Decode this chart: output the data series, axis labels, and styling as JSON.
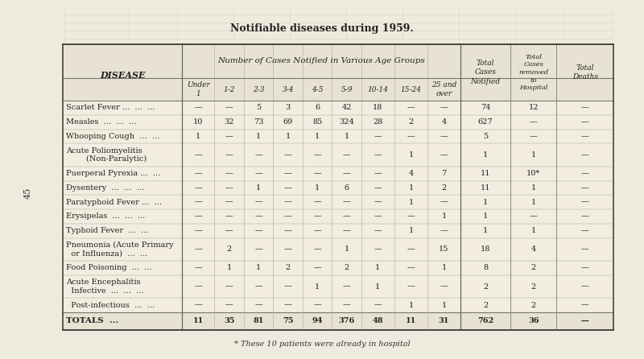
{
  "title": "Notifiable diseases during 1959.",
  "subtitle": "Number of Cases Notified in Various Age Groups",
  "footnote": "* These 10 patients were already in hospital",
  "page_number": "45",
  "bg_color": "#eeeade",
  "table_bg": "#f2ede0",
  "header_bg": "#e8e2d2",
  "rows": [
    {
      "name": [
        "Scarlet Fever ...  ...  ..."
      ],
      "data": [
        "—",
        "—",
        "5",
        "3",
        "6",
        "42",
        "18",
        "—",
        "—",
        "74",
        "12",
        "—"
      ]
    },
    {
      "name": [
        "Measles  ...  ...  ..."
      ],
      "data": [
        "10",
        "32",
        "73",
        "69",
        "85",
        "324",
        "28",
        "2",
        "4",
        "627",
        "—",
        "—"
      ]
    },
    {
      "name": [
        "Whooping Cough  ...  ..."
      ],
      "data": [
        "1",
        "—",
        "1",
        "1",
        "1",
        "1",
        "—",
        "—",
        "—",
        "5",
        "—",
        "—"
      ]
    },
    {
      "name": [
        "Acute Poliomyelitis",
        "        (Non-Paralytic)"
      ],
      "data": [
        "—",
        "—",
        "—",
        "—",
        "—",
        "—",
        "—",
        "1",
        "—",
        "1",
        "1",
        "—"
      ]
    },
    {
      "name": [
        "Puerperal Pyrexia ...  ..."
      ],
      "data": [
        "—",
        "—",
        "—",
        "—",
        "—",
        "—",
        "—",
        "4",
        "7",
        "11",
        "10*",
        "—"
      ]
    },
    {
      "name": [
        "Dysentery  ...  ...  ..."
      ],
      "data": [
        "—",
        "—",
        "1",
        "—",
        "1",
        "6",
        "—",
        "1",
        "2",
        "11",
        "1",
        "—"
      ]
    },
    {
      "name": [
        "Paratyphoid Fever ...  ..."
      ],
      "data": [
        "—",
        "—",
        "—",
        "—",
        "—",
        "—",
        "—",
        "1",
        "—",
        "1",
        "1",
        "—"
      ]
    },
    {
      "name": [
        "Erysipelas  ...  ...  ..."
      ],
      "data": [
        "—",
        "—",
        "—",
        "—",
        "—",
        "—",
        "—",
        "—",
        "1",
        "1",
        "—",
        "—"
      ]
    },
    {
      "name": [
        "Typhoid Fever  ...  ..."
      ],
      "data": [
        "—",
        "—",
        "—",
        "—",
        "—",
        "—",
        "—",
        "1",
        "—",
        "1",
        "1",
        "—"
      ]
    },
    {
      "name": [
        "Pneumonia (Acute Primary",
        "  or Influenza)  ...  ..."
      ],
      "data": [
        "—",
        "2",
        "—",
        "—",
        "—",
        "1",
        "—",
        "—",
        "15",
        "18",
        "4",
        "—"
      ]
    },
    {
      "name": [
        "Food Poisoning  ...  ..."
      ],
      "data": [
        "—",
        "1",
        "1",
        "2",
        "—",
        "2",
        "1",
        "—",
        "1",
        "8",
        "2",
        "—"
      ]
    },
    {
      "name": [
        "Acute Encephalitis",
        "  Infective  ...  ...  ..."
      ],
      "data": [
        "—",
        "—",
        "—",
        "—",
        "1",
        "—",
        "1",
        "—",
        "—",
        "2",
        "2",
        "—"
      ]
    },
    {
      "name": [
        "  Post-infectious  ...  ..."
      ],
      "data": [
        "—",
        "—",
        "—",
        "—",
        "—",
        "—",
        "—",
        "1",
        "1",
        "2",
        "2",
        "—"
      ]
    }
  ],
  "totals_row": {
    "name": "TOTALS  ...",
    "data": [
      "11",
      "35",
      "81",
      "75",
      "94",
      "376",
      "48",
      "11",
      "31",
      "762",
      "36",
      "—"
    ]
  }
}
